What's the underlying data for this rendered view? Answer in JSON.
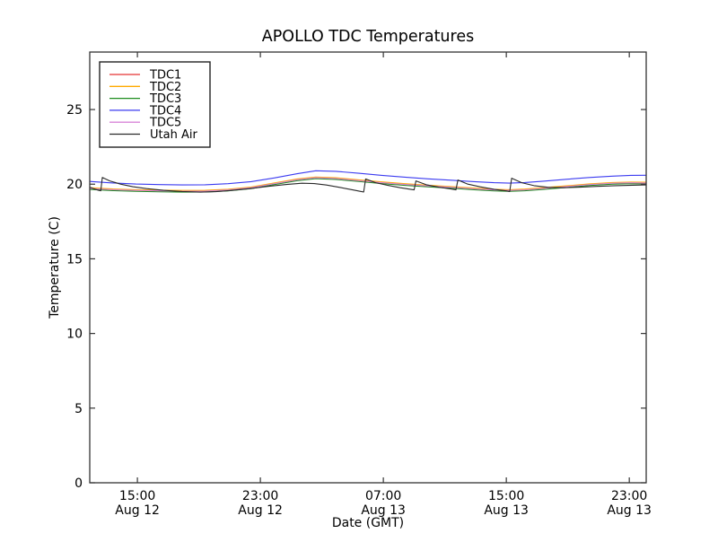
{
  "figure": {
    "background": "#ffffff",
    "frame_color": "#333333"
  },
  "chart_data": {
    "type": "line",
    "title": "APOLLO TDC Temperatures",
    "xlabel": "Date (GMT)",
    "ylabel": "Temperature (C)",
    "xlim": [
      0,
      36.2
    ],
    "ylim": [
      0,
      28.85
    ],
    "grid": false,
    "legend_position": "upper left",
    "yticks": [
      {
        "v": 0,
        "label": "0"
      },
      {
        "v": 5,
        "label": "5"
      },
      {
        "v": 10,
        "label": "10"
      },
      {
        "v": 15,
        "label": "15"
      },
      {
        "v": 20,
        "label": "20"
      },
      {
        "v": 25,
        "label": "25"
      }
    ],
    "xticks": [
      {
        "t": 3.1,
        "time": "15:00",
        "date": "Aug 12"
      },
      {
        "t": 11.1,
        "time": "23:00",
        "date": "Aug 12"
      },
      {
        "t": 19.1,
        "time": "07:00",
        "date": "Aug 13"
      },
      {
        "t": 27.1,
        "time": "15:00",
        "date": "Aug 13"
      },
      {
        "t": 35.1,
        "time": "23:00",
        "date": "Aug 13"
      }
    ],
    "series": [
      {
        "name": "TDC1",
        "color": "#e53333",
        "points": [
          [
            0,
            19.73
          ],
          [
            1.5,
            19.65
          ],
          [
            3,
            19.6
          ],
          [
            4.5,
            19.57
          ],
          [
            6,
            19.55
          ],
          [
            7.5,
            19.56
          ],
          [
            9,
            19.63
          ],
          [
            10.5,
            19.78
          ],
          [
            12,
            20.05
          ],
          [
            13.5,
            20.32
          ],
          [
            14.7,
            20.45
          ],
          [
            16,
            20.4
          ],
          [
            17.5,
            20.26
          ],
          [
            19,
            20.12
          ],
          [
            20.5,
            20.0
          ],
          [
            22,
            19.9
          ],
          [
            23.5,
            19.81
          ],
          [
            25,
            19.71
          ],
          [
            26.3,
            19.63
          ],
          [
            27.3,
            19.6
          ],
          [
            28.3,
            19.64
          ],
          [
            29.5,
            19.73
          ],
          [
            31,
            19.86
          ],
          [
            32.5,
            19.99
          ],
          [
            34,
            20.08
          ],
          [
            35.2,
            20.11
          ],
          [
            36.2,
            20.1
          ]
        ]
      },
      {
        "name": "TDC2",
        "color": "#ffaa00",
        "points": [
          [
            0,
            19.76
          ],
          [
            1.5,
            19.68
          ],
          [
            3,
            19.63
          ],
          [
            4.5,
            19.6
          ],
          [
            6,
            19.58
          ],
          [
            7.5,
            19.59
          ],
          [
            9,
            19.66
          ],
          [
            10.5,
            19.81
          ],
          [
            12,
            20.08
          ],
          [
            13.5,
            20.35
          ],
          [
            14.7,
            20.48
          ],
          [
            16,
            20.43
          ],
          [
            17.5,
            20.29
          ],
          [
            19,
            20.15
          ],
          [
            20.5,
            20.03
          ],
          [
            22,
            19.93
          ],
          [
            23.5,
            19.84
          ],
          [
            25,
            19.74
          ],
          [
            26.3,
            19.66
          ],
          [
            27.3,
            19.63
          ],
          [
            28.3,
            19.67
          ],
          [
            29.5,
            19.76
          ],
          [
            31,
            19.89
          ],
          [
            32.5,
            20.02
          ],
          [
            34,
            20.11
          ],
          [
            35.2,
            20.14
          ],
          [
            36.2,
            20.13
          ]
        ]
      },
      {
        "name": "TDC3",
        "color": "#1e8c1e",
        "points": [
          [
            0,
            19.65
          ],
          [
            1.5,
            19.57
          ],
          [
            3,
            19.52
          ],
          [
            4.5,
            19.49
          ],
          [
            6,
            19.47
          ],
          [
            7.5,
            19.48
          ],
          [
            9,
            19.55
          ],
          [
            10.5,
            19.7
          ],
          [
            12,
            19.97
          ],
          [
            13.5,
            20.24
          ],
          [
            14.7,
            20.37
          ],
          [
            16,
            20.32
          ],
          [
            17.5,
            20.18
          ],
          [
            19,
            20.04
          ],
          [
            20.5,
            19.92
          ],
          [
            22,
            19.82
          ],
          [
            23.5,
            19.73
          ],
          [
            25,
            19.63
          ],
          [
            26.3,
            19.55
          ],
          [
            27.3,
            19.52
          ],
          [
            28.3,
            19.56
          ],
          [
            29.5,
            19.65
          ],
          [
            31,
            19.78
          ],
          [
            32.5,
            19.91
          ],
          [
            34,
            20.0
          ],
          [
            35.2,
            20.03
          ],
          [
            36.2,
            20.02
          ]
        ]
      },
      {
        "name": "TDC4",
        "color": "#3b3bf0",
        "points": [
          [
            0,
            20.18
          ],
          [
            1.5,
            20.08
          ],
          [
            3,
            20.01
          ],
          [
            4.5,
            19.97
          ],
          [
            6,
            19.95
          ],
          [
            7.5,
            19.96
          ],
          [
            9,
            20.03
          ],
          [
            10.5,
            20.17
          ],
          [
            12,
            20.42
          ],
          [
            13.5,
            20.7
          ],
          [
            14.7,
            20.9
          ],
          [
            16,
            20.86
          ],
          [
            17.5,
            20.73
          ],
          [
            19,
            20.59
          ],
          [
            20.5,
            20.47
          ],
          [
            22,
            20.36
          ],
          [
            23.5,
            20.27
          ],
          [
            25,
            20.17
          ],
          [
            26.3,
            20.1
          ],
          [
            27.3,
            20.07
          ],
          [
            28.3,
            20.11
          ],
          [
            29.5,
            20.2
          ],
          [
            31,
            20.33
          ],
          [
            32.5,
            20.45
          ],
          [
            34,
            20.54
          ],
          [
            35.2,
            20.59
          ],
          [
            36.2,
            20.6
          ]
        ]
      },
      {
        "name": "TDC5",
        "color": "#d884d8",
        "points": [
          [
            0,
            19.71
          ],
          [
            1.5,
            19.63
          ],
          [
            3,
            19.58
          ],
          [
            4.5,
            19.55
          ],
          [
            6,
            19.53
          ],
          [
            7.5,
            19.54
          ],
          [
            9,
            19.61
          ],
          [
            10.5,
            19.76
          ],
          [
            12,
            20.03
          ],
          [
            13.5,
            20.3
          ],
          [
            14.7,
            20.43
          ],
          [
            16,
            20.38
          ],
          [
            17.5,
            20.24
          ],
          [
            19,
            20.1
          ],
          [
            20.5,
            19.98
          ],
          [
            22,
            19.88
          ],
          [
            23.5,
            19.79
          ],
          [
            25,
            19.69
          ],
          [
            26.3,
            19.61
          ],
          [
            27.3,
            19.58
          ],
          [
            28.3,
            19.62
          ],
          [
            29.5,
            19.71
          ],
          [
            31,
            19.84
          ],
          [
            32.5,
            19.97
          ],
          [
            34,
            20.06
          ],
          [
            35.2,
            20.09
          ],
          [
            36.2,
            20.08
          ]
        ]
      },
      {
        "name": "Utah Air",
        "color": "#2a2a2a",
        "points": [
          [
            0,
            19.8
          ],
          [
            0.35,
            19.66
          ],
          [
            0.6,
            19.58
          ],
          [
            0.72,
            19.56
          ],
          [
            0.82,
            20.45
          ],
          [
            1.3,
            20.22
          ],
          [
            2.0,
            20.0
          ],
          [
            2.8,
            19.83
          ],
          [
            3.7,
            19.7
          ],
          [
            4.8,
            19.59
          ],
          [
            6.0,
            19.51
          ],
          [
            7.2,
            19.47
          ],
          [
            8.2,
            19.5
          ],
          [
            9.2,
            19.58
          ],
          [
            10.4,
            19.7
          ],
          [
            11.6,
            19.85
          ],
          [
            12.8,
            19.98
          ],
          [
            13.8,
            20.06
          ],
          [
            14.6,
            20.04
          ],
          [
            15.4,
            19.94
          ],
          [
            16.3,
            19.78
          ],
          [
            17.1,
            19.62
          ],
          [
            17.7,
            19.5
          ],
          [
            17.82,
            19.48
          ],
          [
            17.95,
            20.35
          ],
          [
            18.6,
            20.1
          ],
          [
            19.4,
            19.92
          ],
          [
            20.2,
            19.76
          ],
          [
            20.9,
            19.65
          ],
          [
            21.1,
            19.62
          ],
          [
            21.22,
            20.22
          ],
          [
            21.9,
            19.96
          ],
          [
            22.7,
            19.8
          ],
          [
            23.5,
            19.68
          ],
          [
            23.82,
            19.62
          ],
          [
            23.95,
            20.28
          ],
          [
            24.6,
            20.0
          ],
          [
            25.4,
            19.82
          ],
          [
            26.3,
            19.66
          ],
          [
            27.1,
            19.55
          ],
          [
            27.32,
            19.51
          ],
          [
            27.45,
            20.4
          ],
          [
            28.1,
            20.1
          ],
          [
            28.9,
            19.9
          ],
          [
            29.8,
            19.79
          ],
          [
            30.8,
            19.76
          ],
          [
            31.9,
            19.8
          ],
          [
            33.0,
            19.85
          ],
          [
            34.2,
            19.9
          ],
          [
            35.3,
            19.93
          ],
          [
            36.2,
            19.95
          ]
        ]
      }
    ]
  }
}
